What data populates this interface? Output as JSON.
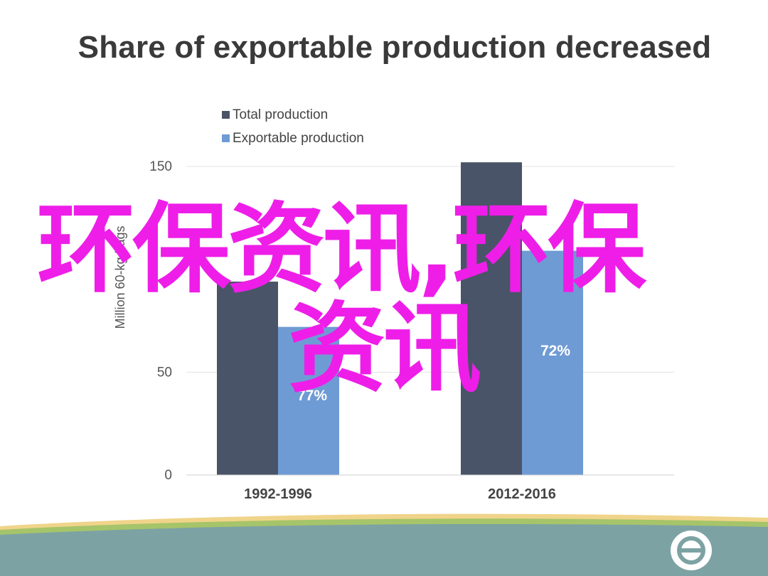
{
  "slide": {
    "title": "Share of exportable production decreased",
    "watermark_line1": "环保资讯,环保",
    "watermark_line2": "资讯"
  },
  "colors": {
    "total": "#4a5468",
    "exportable": "#6f9bd4",
    "watermark": "#ee1ee8",
    "footer_band": "#7da2a4",
    "footer_stripe_green": "#a6c46a",
    "footer_stripe_yellow": "#f0d48a"
  },
  "chart_data": {
    "type": "bar",
    "title": "Share of exportable production decreased",
    "ylabel": "Million 60-kg bags",
    "ylim": [
      0,
      150
    ],
    "yticks": [
      0,
      50,
      150
    ],
    "grid": true,
    "legend_position": "top-left",
    "categories": [
      "1992-1996",
      "2012-2016"
    ],
    "series": [
      {
        "name": "Total production",
        "values": [
          94,
          152
        ],
        "color": "#4a5468"
      },
      {
        "name": "Exportable production",
        "values": [
          72,
          109
        ],
        "color": "#6f9bd4"
      }
    ],
    "annotations": [
      {
        "series": "Exportable production",
        "category": "1992-1996",
        "text": "77%"
      },
      {
        "series": "Exportable production",
        "category": "2012-2016",
        "text": "72%"
      }
    ]
  },
  "icons": {
    "footer_logo": "theta-logo-icon"
  }
}
